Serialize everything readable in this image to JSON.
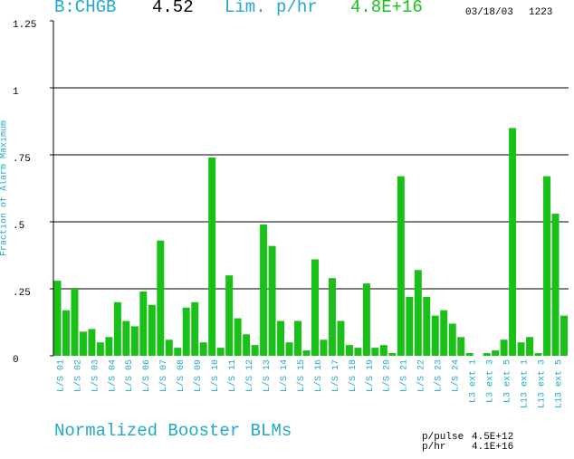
{
  "header": {
    "parameter": "B:CHGB",
    "parameter_value": "4.52",
    "limit_label": "Lim. p/hr",
    "limit_value": "4.8E+16",
    "date": "03/18/03",
    "time": "1223"
  },
  "chart_data": {
    "type": "bar",
    "title": "Normalized Booster BLMs",
    "y_label": "Fraction of Alarm Maximum",
    "categories": [
      "L/S 01",
      null,
      "L/S 02",
      null,
      "L/S 03",
      null,
      "L/S 04",
      null,
      "L/S 05",
      null,
      "L/S 06",
      null,
      "L/S 07",
      null,
      "L/S 08",
      null,
      "L/S 09",
      null,
      "L/S 10",
      null,
      "L/S 11",
      null,
      "L/S 12",
      null,
      "L/S 13",
      null,
      "L/S 14",
      null,
      "L/S 15",
      null,
      "L/S 16",
      null,
      "L/S 17",
      null,
      "L/S 18",
      null,
      "L/S 19",
      null,
      "L/S 20",
      null,
      "L/S 21",
      null,
      "L/S 22",
      null,
      "L/S 23",
      null,
      "L/S 24",
      null,
      "L3 ext 1",
      null,
      "L3 ext 3",
      null,
      "L3 ext 5",
      null,
      "L13 ext 1",
      null,
      "L13 ext 3",
      null,
      "L13 ext 5",
      null
    ],
    "values": [
      0.28,
      0.17,
      0.25,
      0.09,
      0.1,
      0.05,
      0.07,
      0.2,
      0.13,
      0.11,
      0.24,
      0.19,
      0.43,
      0.06,
      0.03,
      0.18,
      0.2,
      0.05,
      0.74,
      0.03,
      0.3,
      0.14,
      0.08,
      0.04,
      0.49,
      0.41,
      0.13,
      0.05,
      0.13,
      0.02,
      0.36,
      0.06,
      0.29,
      0.13,
      0.04,
      0.03,
      0.27,
      0.03,
      0.04,
      0.01,
      0.67,
      0.22,
      0.32,
      0.22,
      0.15,
      0.17,
      0.12,
      0.07,
      0.01,
      0,
      0.01,
      0.02,
      0.06,
      0.85,
      0.05,
      0.07,
      0.01,
      0.67,
      0.53,
      0.15
    ],
    "color": "#18c018",
    "ylim": [
      0,
      1.25
    ],
    "yticks": [
      0,
      {
        "value": 0.25,
        "label": ".25"
      },
      {
        "value": 0.5,
        "label": ".5"
      },
      {
        "value": 0.75,
        "label": ".75"
      },
      1,
      1.25
    ],
    "grid": true
  },
  "footer": {
    "stats": [
      {
        "label": "p/pulse",
        "value": "4.5E+12"
      },
      {
        "label": "p/hr",
        "value": "4.1E+16"
      }
    ]
  }
}
